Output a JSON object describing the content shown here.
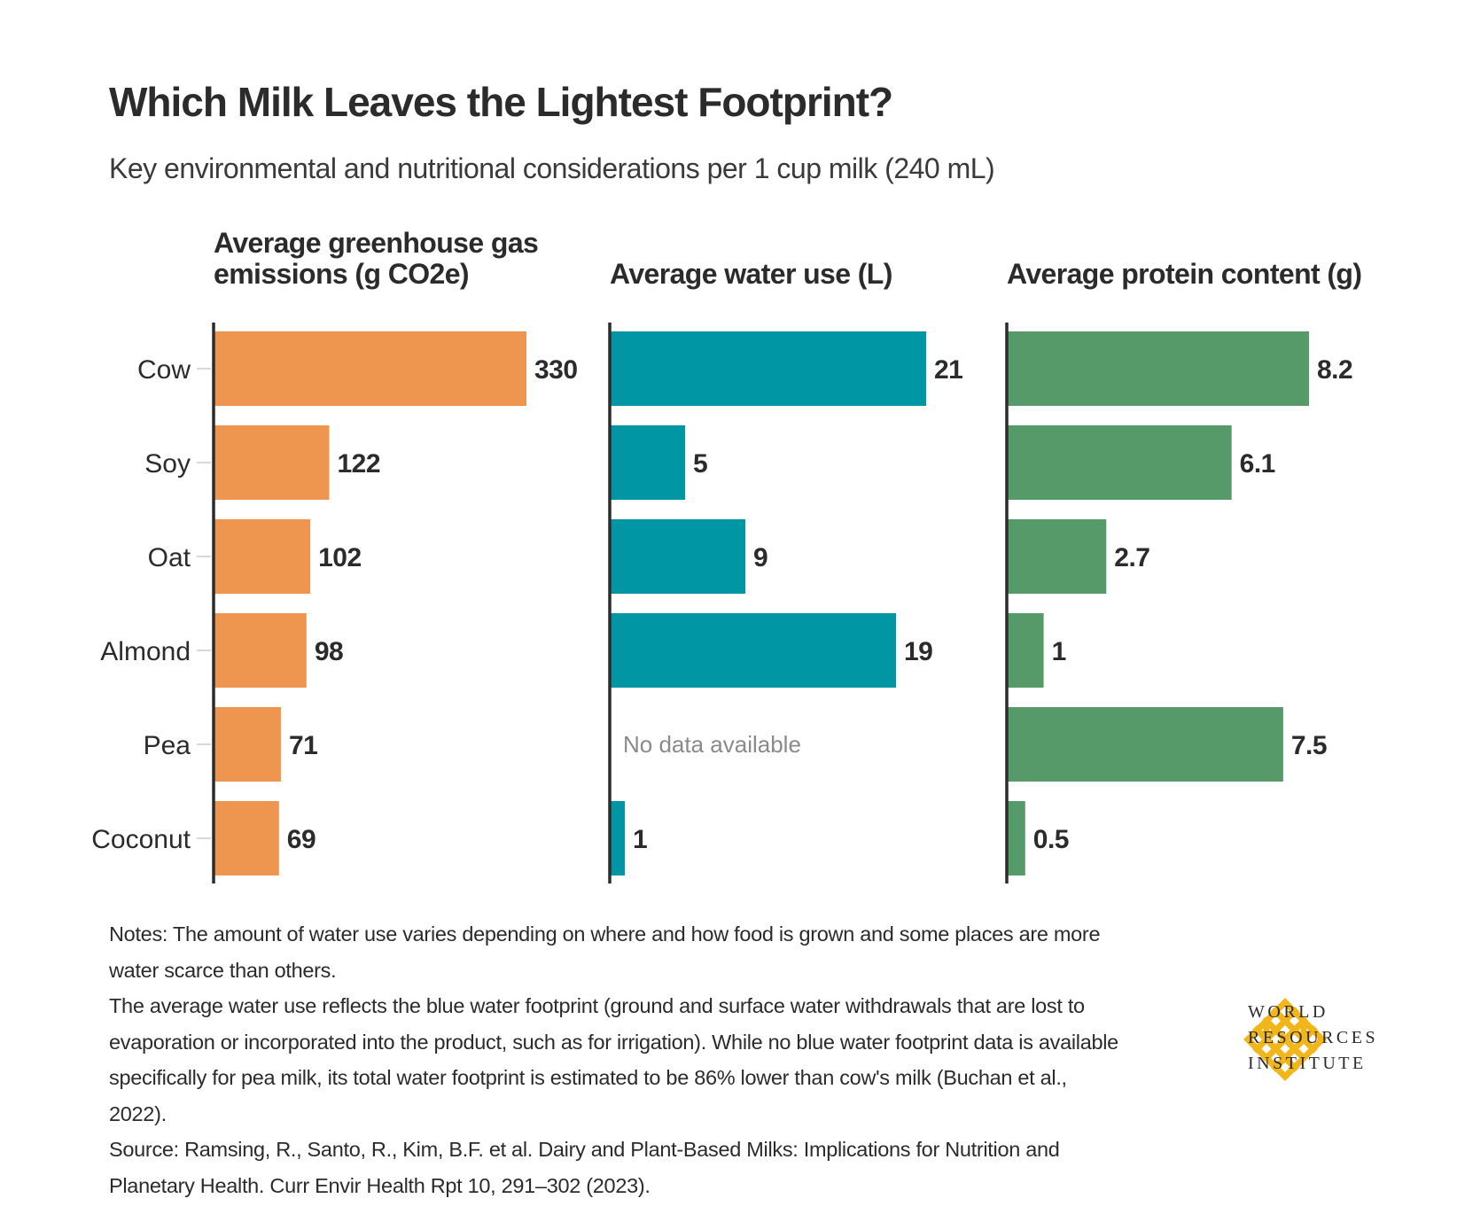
{
  "header": {
    "title": "Which Milk Leaves the Lightest Footprint?",
    "subtitle": "Key environmental and nutritional considerations per 1 cup milk (240 mL)"
  },
  "chart_data": [
    {
      "type": "bar",
      "orientation": "horizontal",
      "title": "Average greenhouse gas emissions (g CO2e)",
      "title_lines": [
        "Average greenhouse gas",
        "emissions (g CO2e)"
      ],
      "categories": [
        "Cow",
        "Soy",
        "Oat",
        "Almond",
        "Pea",
        "Coconut"
      ],
      "values": [
        330,
        122,
        102,
        98,
        71,
        69
      ],
      "labels": [
        "330",
        "122",
        "102",
        "98",
        "71",
        "69"
      ],
      "xlim": [
        0,
        330
      ],
      "color": "#ee9650"
    },
    {
      "type": "bar",
      "orientation": "horizontal",
      "title": "Average water use (L)",
      "title_lines": [
        "Average water use (L)"
      ],
      "categories": [
        "Cow",
        "Soy",
        "Oat",
        "Almond",
        "Pea",
        "Coconut"
      ],
      "values": [
        21,
        5,
        9,
        19,
        null,
        1
      ],
      "labels": [
        "21",
        "5",
        "9",
        "19",
        "",
        "1"
      ],
      "missing_label": "No data available",
      "xlim": [
        0,
        21
      ],
      "color": "#0096a4"
    },
    {
      "type": "bar",
      "orientation": "horizontal",
      "title": "Average protein content (g)",
      "title_lines": [
        "Average protein content (g)"
      ],
      "categories": [
        "Cow",
        "Soy",
        "Oat",
        "Almond",
        "Pea",
        "Coconut"
      ],
      "values": [
        8.2,
        6.1,
        2.7,
        1,
        7.5,
        0.5
      ],
      "labels": [
        "8.2",
        "6.1",
        "2.7",
        "1",
        "7.5",
        "0.5"
      ],
      "xlim": [
        0,
        8.2
      ],
      "color": "#559a68"
    }
  ],
  "notes": {
    "line1": "Notes: The amount of water use varies depending on where and how food is grown and some places are more water scarce than others.",
    "line2": "The average water use reflects the blue water footprint (ground and surface water withdrawals that are lost to evaporation or incorporated into the product, such as for irrigation). While no blue water footprint data is available specifically for pea milk, its total water footprint is estimated to be 86% lower than cow's milk (Buchan et al., 2022).",
    "line3": "Source: Ramsing, R., Santo, R., Kim, B.F. et al. Dairy and Plant-Based Milks: Implications for Nutrition and Planetary Health. Curr Envir Health Rpt 10, 291–302 (2023)."
  },
  "logo": {
    "icon": "wri-knot-logo-icon",
    "color": "#f2b61b",
    "lines": [
      "WORLD",
      "RESOURCES",
      "INSTITUTE"
    ]
  }
}
